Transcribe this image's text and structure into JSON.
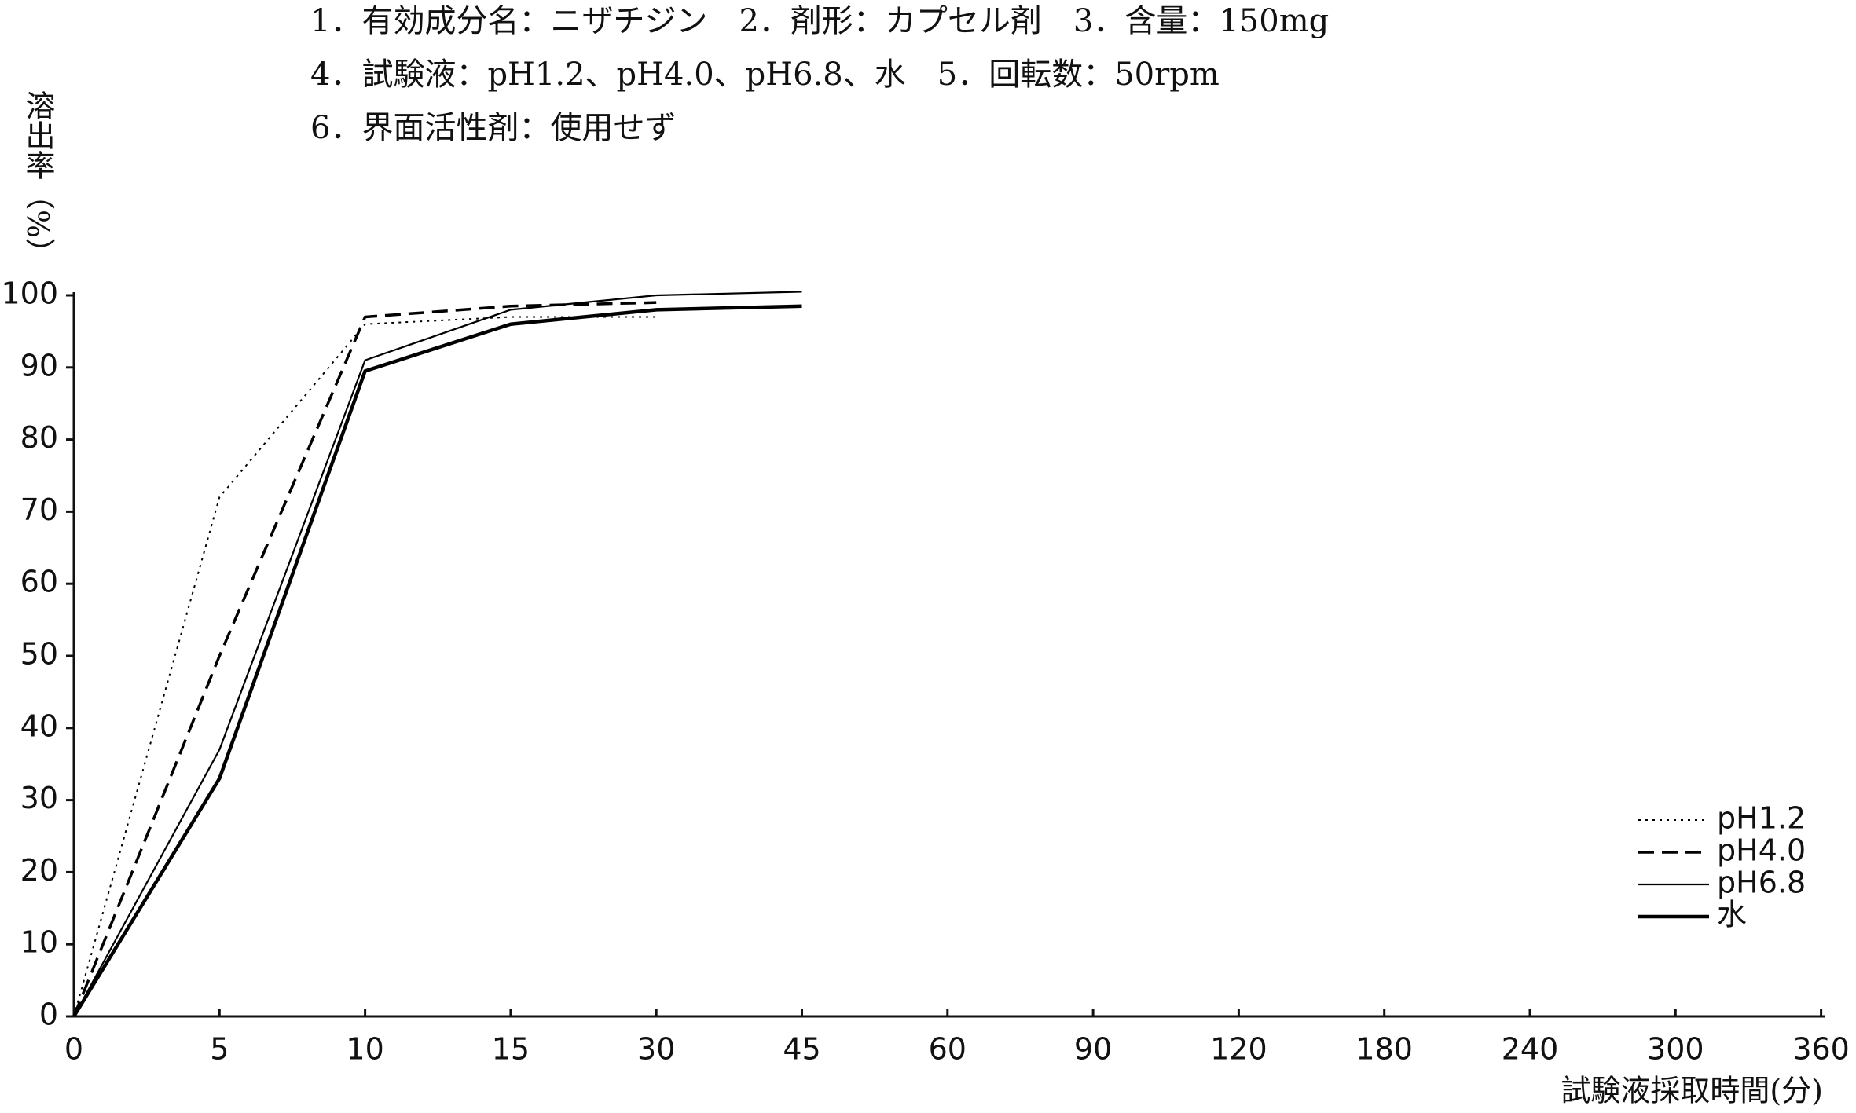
{
  "chart_data": {
    "type": "line",
    "annotations": [
      "1．有効成分名：ニザチジン　2．剤形：カプセル剤　3．含量：150mg",
      "4．試験液：pH1.2、pH4.0、pH6.8、水　5．回転数：50rpm",
      "6．界面活性剤：使用せず"
    ],
    "ylabel": "溶出率（%）",
    "xlabel": "試験液採取時間(分)",
    "categories": [
      "0",
      "5",
      "10",
      "15",
      "30",
      "45",
      "60",
      "90",
      "120",
      "180",
      "240",
      "300",
      "360"
    ],
    "series": [
      {
        "name": "pH1.2",
        "color": "#000000",
        "values": [
          0,
          72,
          96,
          97,
          97,
          null,
          null,
          null,
          null,
          null,
          null,
          null,
          null
        ]
      },
      {
        "name": "pH4.0",
        "color": "#000000",
        "values": [
          0,
          50,
          97,
          98.5,
          99,
          null,
          null,
          null,
          null,
          null,
          null,
          null,
          null
        ]
      },
      {
        "name": "pH6.8",
        "color": "#000000",
        "values": [
          0,
          37,
          91,
          98,
          100,
          100.5,
          null,
          null,
          null,
          null,
          null,
          null,
          null
        ]
      },
      {
        "name": "水",
        "color": "#000000",
        "values": [
          0,
          33,
          89.5,
          96,
          98,
          98.5,
          null,
          null,
          null,
          null,
          null,
          null,
          null
        ]
      }
    ],
    "ylim": [
      0,
      100
    ],
    "yticks": [
      0,
      10,
      20,
      30,
      40,
      50,
      60,
      70,
      80,
      90,
      100
    ],
    "grid": false,
    "legend": "lower right"
  }
}
